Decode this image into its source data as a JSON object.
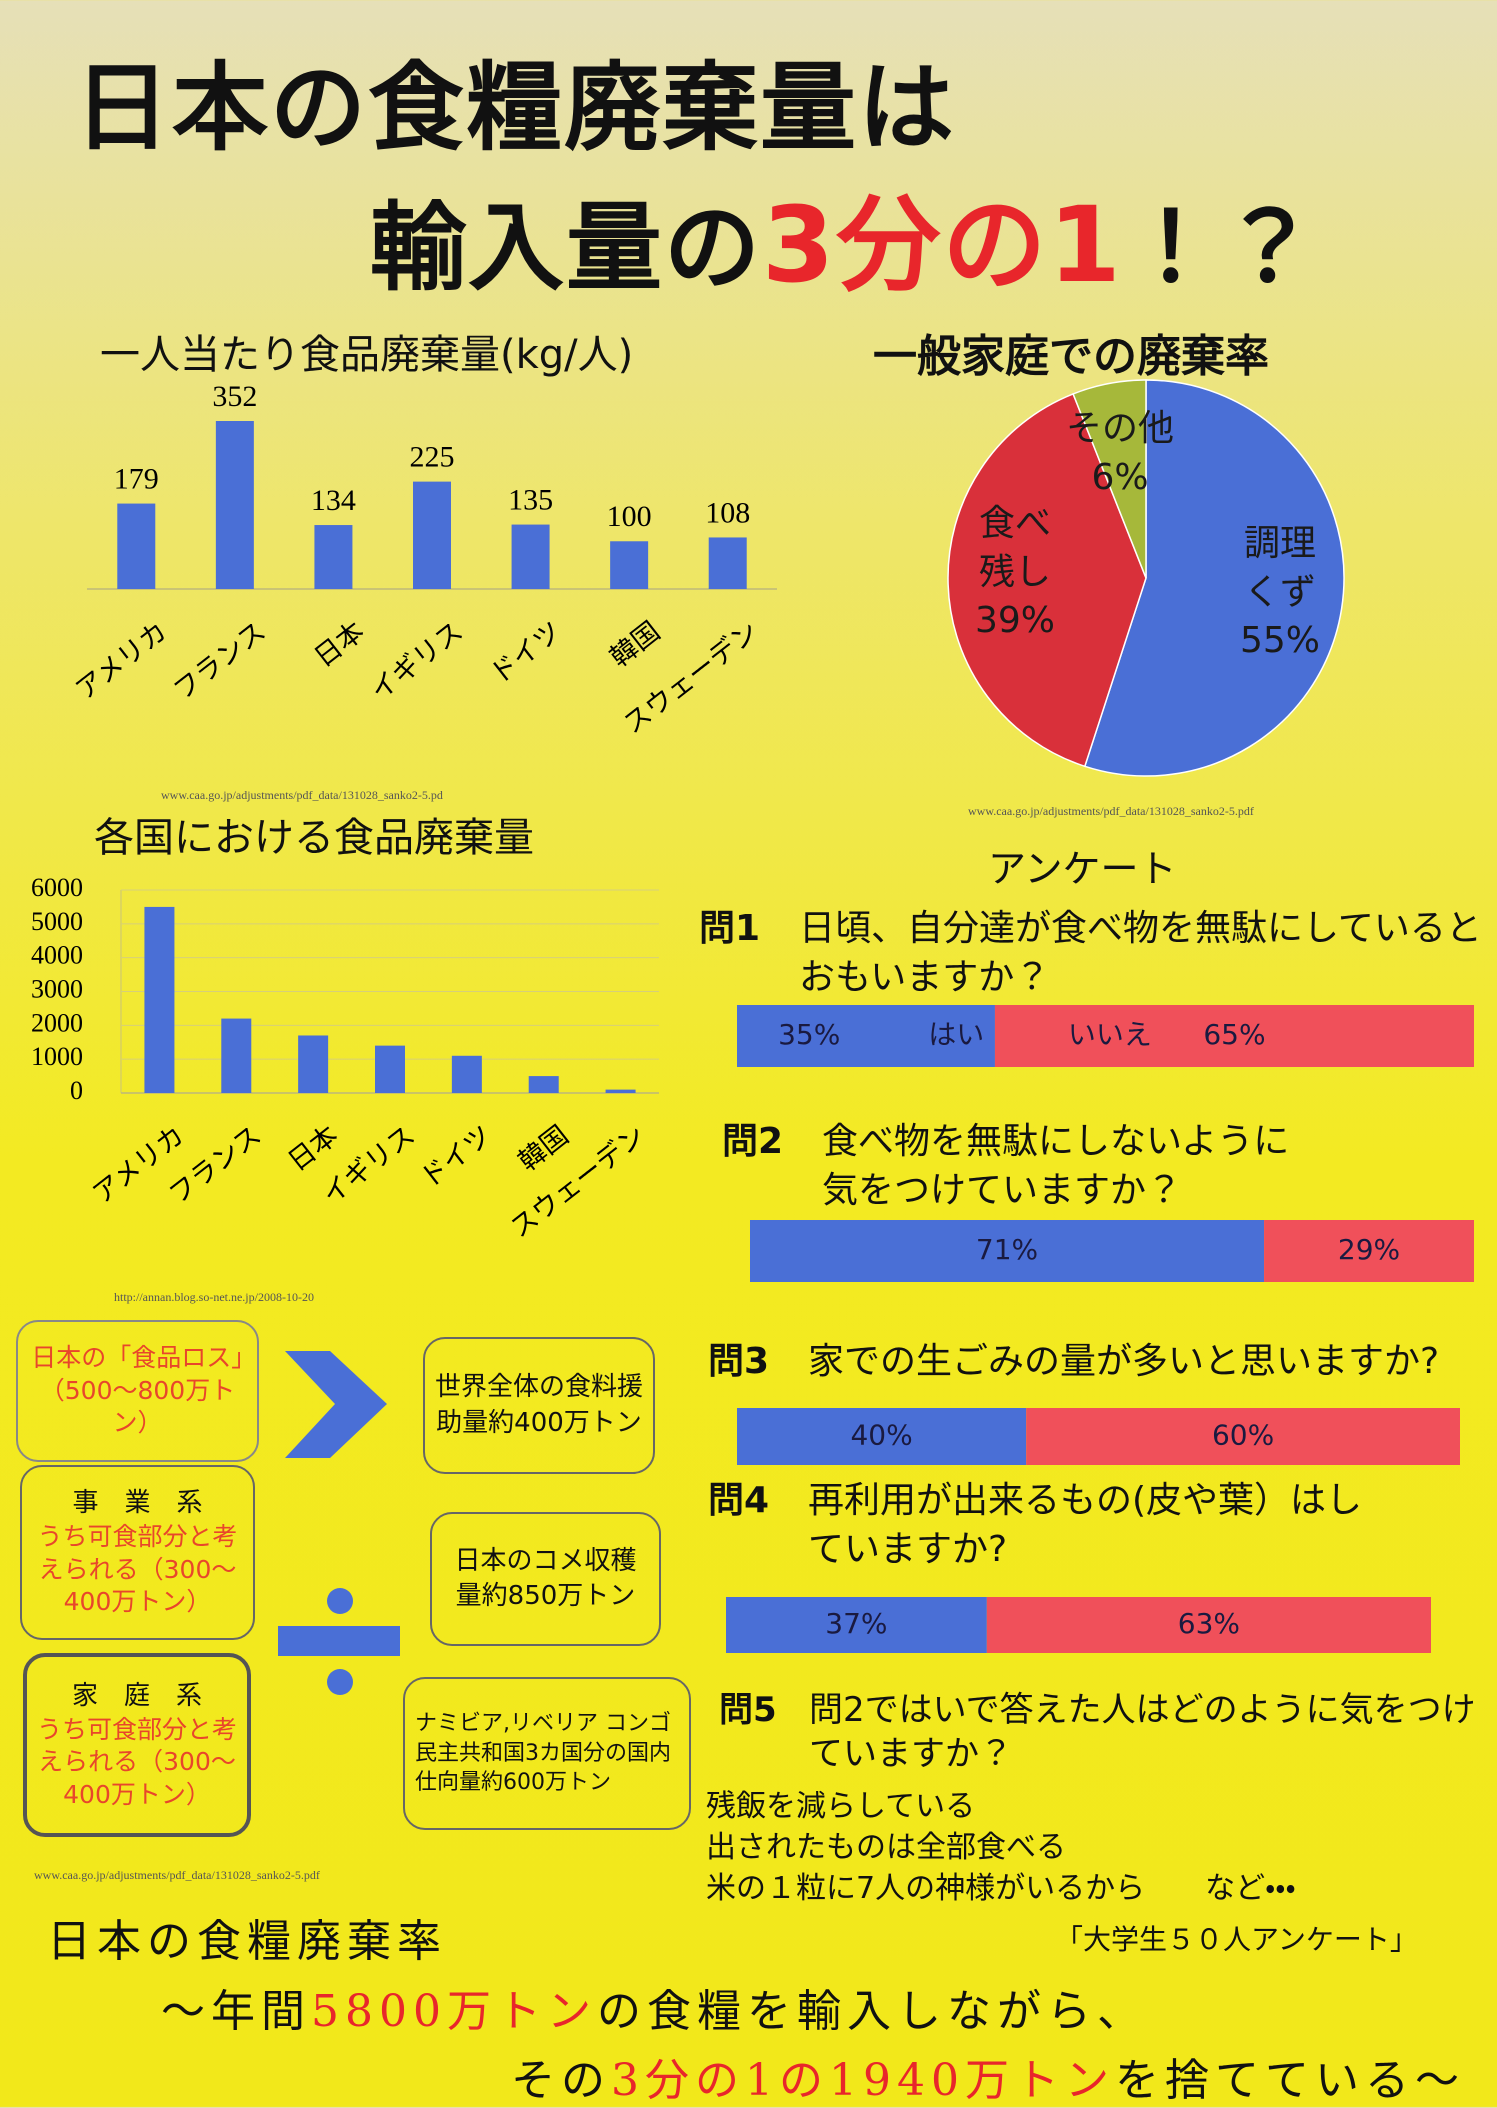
{
  "title": {
    "line1": "日本の食糧廃棄量は",
    "line2a": "輸入量の",
    "line2b": "3分の1",
    "line2c": "！？"
  },
  "chart_data": [
    {
      "type": "bar",
      "title": "一人当たり食品廃棄量(kg/人)",
      "categories": [
        "アメリカ",
        "フランス",
        "日本",
        "イギリス",
        "ドイツ",
        "韓国",
        "スウェーデン"
      ],
      "values": [
        179,
        352,
        134,
        225,
        135,
        100,
        108
      ],
      "color": "#4a6fd6",
      "source": "www.caa.go.jp/adjustments/pdf_data/131028_sanko2-5.pd"
    },
    {
      "type": "pie",
      "title": "一般家庭での廃棄率",
      "categories": [
        "調理くず",
        "食べ残し",
        "その他"
      ],
      "values": [
        55,
        39,
        6
      ],
      "value_labels": [
        "55%",
        "39%",
        "6%"
      ],
      "colors": [
        "#4a6fd6",
        "#d9303a",
        "#a6b83a"
      ],
      "source": "www.caa.go.jp/adjustments/pdf_data/131028_sanko2-5.pdf"
    },
    {
      "type": "bar",
      "title": "各国における食品廃棄量",
      "categories": [
        "アメリカ",
        "フランス",
        "日本",
        "イギリス",
        "ドイツ",
        "韓国",
        "スウェーデン"
      ],
      "values": [
        5500,
        2200,
        1700,
        1400,
        1100,
        500,
        100
      ],
      "color": "#4a6fd6",
      "ylim": [
        0,
        6000
      ],
      "yticks": [
        0,
        1000,
        2000,
        3000,
        4000,
        5000,
        6000
      ],
      "grid": true,
      "source": "http://annan.blog.so-net.ne.jp/2008-10-20"
    },
    {
      "type": "hbar100",
      "label": "問1",
      "title": "日頃、自分達が食べ物を無駄にしているとおもいますか？",
      "xlim": [
        0,
        100
      ],
      "series": [
        {
          "name": "はい",
          "color": "#4a6fd6",
          "values": [
            35
          ],
          "value_labels": [
            "35%"
          ]
        },
        {
          "name": "いいえ",
          "color": "#f0505a",
          "values": [
            65
          ],
          "value_labels": [
            "65%"
          ]
        }
      ]
    },
    {
      "type": "hbar100",
      "label": "問2",
      "title": "食べ物を無駄にしないように気をつけていますか？",
      "xlim": [
        0,
        100
      ],
      "series": [
        {
          "color": "#4a6fd6",
          "values": [
            71
          ],
          "value_labels": [
            "71%"
          ]
        },
        {
          "color": "#f0505a",
          "values": [
            29
          ],
          "value_labels": [
            "29%"
          ]
        }
      ]
    },
    {
      "type": "hbar100",
      "label": "問3",
      "title": "家での生ごみの量が多いと思いますか?",
      "xlim": [
        0,
        100
      ],
      "series": [
        {
          "color": "#4a6fd6",
          "values": [
            40
          ],
          "value_labels": [
            "40%"
          ]
        },
        {
          "color": "#f0505a",
          "values": [
            60
          ],
          "value_labels": [
            "60%"
          ]
        }
      ]
    },
    {
      "type": "hbar100",
      "label": "問4",
      "title": "再利用が出来るもの(皮や葉）はしていますか?",
      "xlim": [
        0,
        100
      ],
      "series": [
        {
          "color": "#4a6fd6",
          "values": [
            37
          ],
          "value_labels": [
            "37%"
          ]
        },
        {
          "color": "#f0505a",
          "values": [
            63
          ],
          "value_labels": [
            "63%"
          ]
        }
      ]
    }
  ],
  "survey": {
    "heading": "アンケート",
    "q5": {
      "label": "問5",
      "text": "問2ではいで答えた人はどのように気をつけていますか？",
      "answers": [
        "残飯を減らしている",
        "出されたものは全部食べる",
        "米の１粒に7人の神様がいるから　　など・・・"
      ]
    },
    "note": "「大学生５０人アンケート」"
  },
  "boxes": {
    "loss": "日本の「食品ロス」（500～800万トン）",
    "business": {
      "name": "事　業　系",
      "text": "うち可食部分と考えられる（300～400万トン）"
    },
    "household": {
      "name": "家　庭　系",
      "text": "うち可食部分と考えられる（300～400万トン）"
    },
    "aid": "世界全体の食料援助量約400万トン",
    "rice": "日本のコメ収穫量約850万トン",
    "africa": "ナミビア,リベリア コンゴ 民主共和国3カ国分の国内仕向量約600万トン",
    "source": "www.caa.go.jp/adjustments/pdf_data/131028_sanko2-5.pdf"
  },
  "footer": {
    "line1": "日本の食糧廃棄率",
    "l2a": "～年間",
    "l2b": "5800万トン",
    "l2c": "の食糧を輸入しながら、",
    "l3a": "その",
    "l3b": "3分の1の1940万トン",
    "l3c": "を捨てている～"
  }
}
